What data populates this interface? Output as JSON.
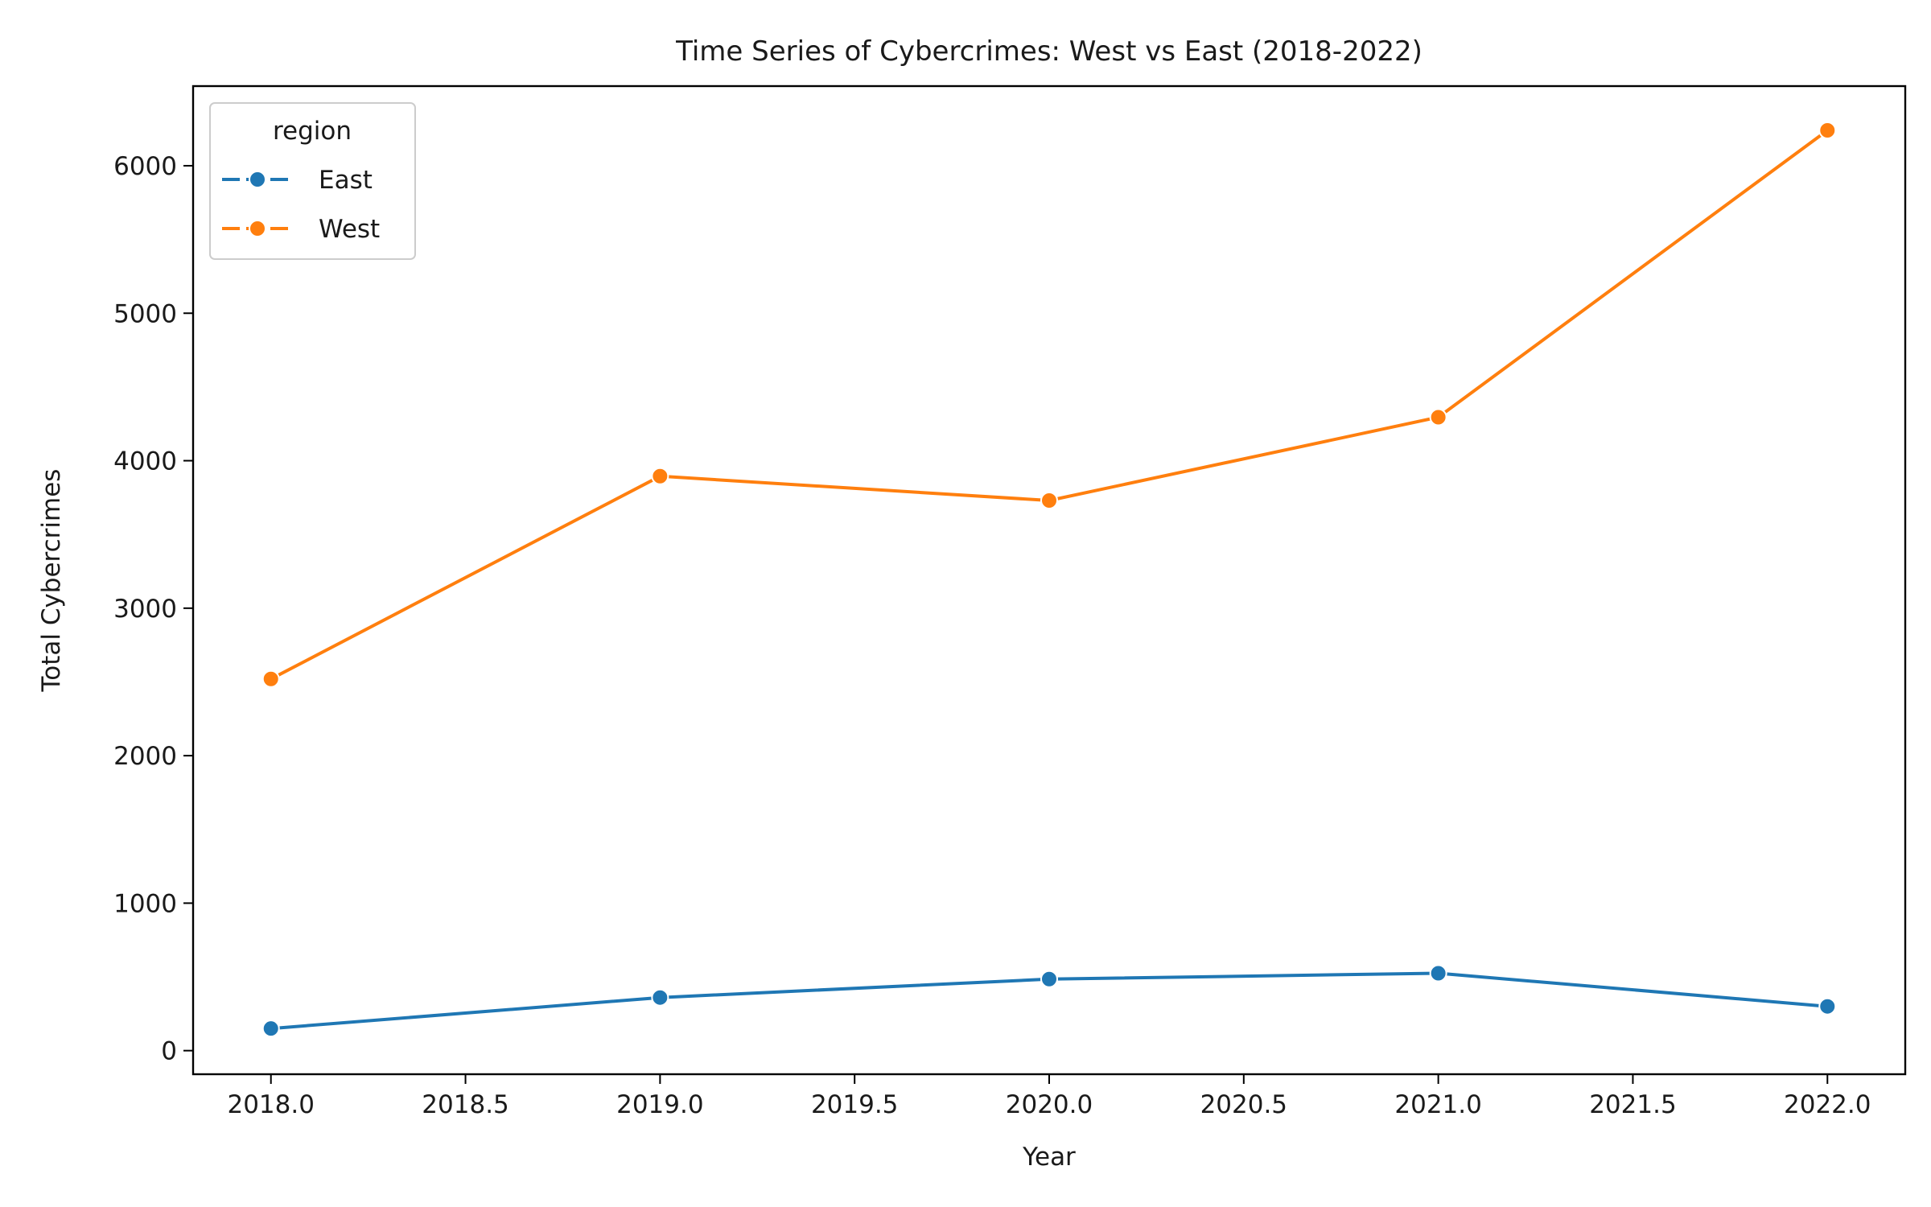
{
  "chart_data": {
    "type": "line",
    "title": "Time Series of Cybercrimes: West vs East (2018-2022)",
    "xlabel": "Year",
    "ylabel": "Total Cybercrimes",
    "xlim": [
      2017.8,
      2022.2
    ],
    "ylim": [
      -160,
      6540
    ],
    "x_ticks": [
      2018.0,
      2018.5,
      2019.0,
      2019.5,
      2020.0,
      2020.5,
      2021.0,
      2021.5,
      2022.0
    ],
    "x_tick_labels": [
      "2018.0",
      "2018.5",
      "2019.0",
      "2019.5",
      "2020.0",
      "2020.5",
      "2021.0",
      "2021.5",
      "2022.0"
    ],
    "y_ticks": [
      0,
      1000,
      2000,
      3000,
      4000,
      5000,
      6000
    ],
    "y_tick_labels": [
      "0",
      "1000",
      "2000",
      "3000",
      "4000",
      "5000",
      "6000"
    ],
    "grid": false,
    "legend": {
      "title": "region",
      "placement": "top-left"
    },
    "x": [
      2018,
      2019,
      2020,
      2021,
      2022
    ],
    "series": [
      {
        "name": "East",
        "color": "#1f77b4",
        "marker": "circle",
        "values": [
          150,
          360,
          485,
          525,
          300
        ]
      },
      {
        "name": "West",
        "color": "#ff7f0e",
        "marker": "circle",
        "values": [
          2520,
          3895,
          3730,
          4295,
          6240
        ]
      }
    ]
  }
}
